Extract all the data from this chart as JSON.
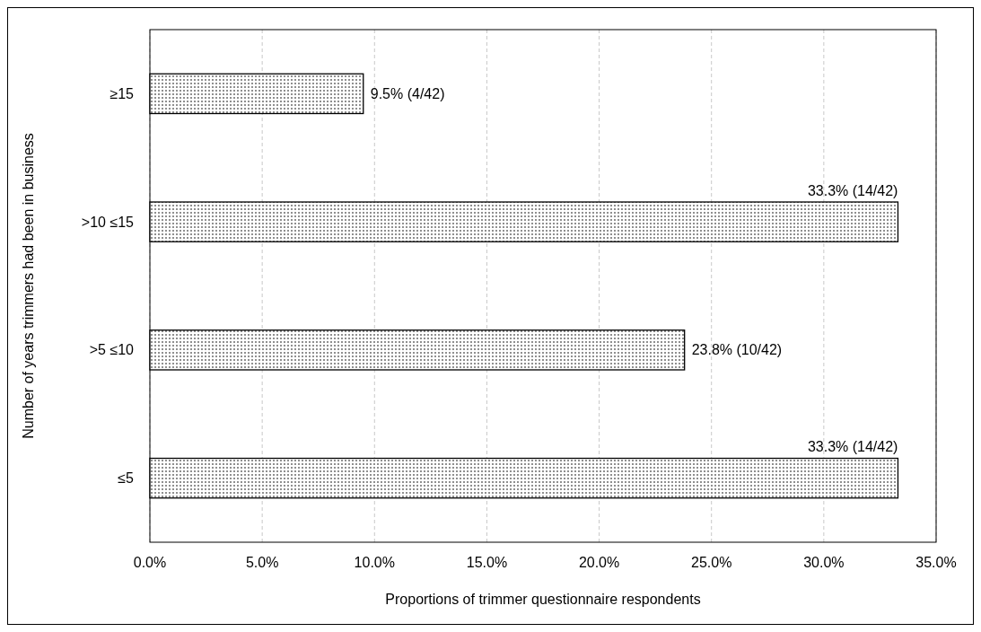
{
  "chart_data": {
    "type": "bar",
    "orientation": "horizontal",
    "xlabel": "Proportions of trimmer questionnaire respondents",
    "ylabel": "Number of years trimmers had been in business",
    "categories": [
      "≥15",
      ">10 ≤15",
      ">5 ≤10",
      "≤5"
    ],
    "values": [
      9.5,
      33.3,
      23.8,
      33.3
    ],
    "value_labels": [
      "9.5% (4/42)",
      "33.3% (14/42)",
      "23.8% (10/42)",
      "33.3% (14/42)"
    ],
    "color": "#000000",
    "xlim": [
      0,
      35
    ],
    "xticks": [
      {
        "value": 0,
        "label": "0.0%"
      },
      {
        "value": 5,
        "label": "5.0%"
      },
      {
        "value": 10,
        "label": "10.0%"
      },
      {
        "value": 15,
        "label": "15.0%"
      },
      {
        "value": 20,
        "label": "20.0%"
      },
      {
        "value": 25,
        "label": "25.0%"
      },
      {
        "value": 30,
        "label": "30.0%"
      },
      {
        "value": 35,
        "label": "35.0%"
      }
    ],
    "grid": "x"
  }
}
